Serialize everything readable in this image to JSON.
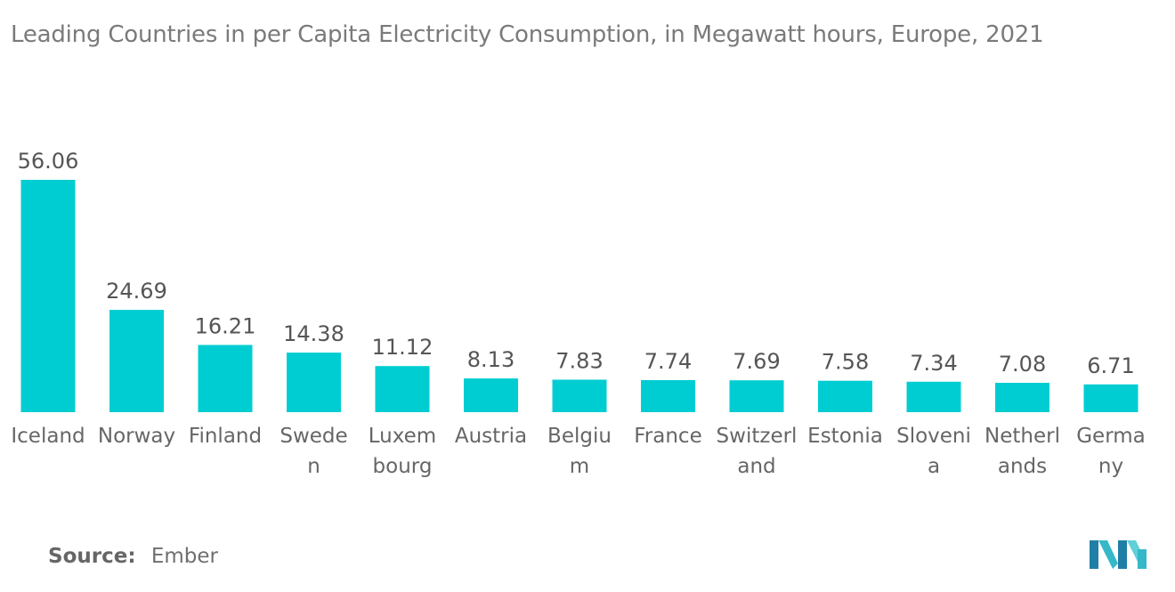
{
  "title": "Leading Countries in per Capita Electricity Consumption, in Megawatt hours, Europe, 2021",
  "source": {
    "label": "Source:",
    "value": "Ember"
  },
  "logo": {
    "icon": "mordor-intelligence-logo-icon",
    "colors": [
      "#1f7fa6",
      "#37b8c9",
      "#61d0d8"
    ]
  },
  "colors": {
    "bar": "#00cdd2",
    "title": "#7a7a7a",
    "label": "#555555"
  },
  "chart_data": {
    "type": "bar",
    "title": "Leading Countries in per Capita Electricity Consumption, in Megawatt hours, Europe, 2021",
    "xlabel": "",
    "ylabel": "",
    "grid": false,
    "legend": "none",
    "categories": [
      "Iceland",
      "Norway",
      "Finland",
      "Sweden",
      "Luxembourg",
      "Austria",
      "Belgium",
      "France",
      "Switzerland",
      "Estonia",
      "Slovenia",
      "Netherlands",
      "Germany"
    ],
    "category_lines": [
      [
        "Iceland"
      ],
      [
        "Norway"
      ],
      [
        "Finland"
      ],
      [
        "Swede",
        "n"
      ],
      [
        "Luxem",
        "bourg"
      ],
      [
        "Austria"
      ],
      [
        "Belgiu",
        "m"
      ],
      [
        "France"
      ],
      [
        "Switzerl",
        "and"
      ],
      [
        "Estonia"
      ],
      [
        "Sloveni",
        "a"
      ],
      [
        "Netherl",
        "ands"
      ],
      [
        "Germa",
        "ny"
      ]
    ],
    "values": [
      56.06,
      24.69,
      16.21,
      14.38,
      11.12,
      8.13,
      7.83,
      7.74,
      7.69,
      7.58,
      7.34,
      7.08,
      6.71
    ],
    "value_labels": [
      "56.06",
      "24.69",
      "16.21",
      "14.38",
      "11.12",
      "8.13",
      "7.83",
      "7.74",
      "7.69",
      "7.58",
      "7.34",
      "7.08",
      "6.71"
    ],
    "ylim": [
      0,
      56.06
    ]
  }
}
